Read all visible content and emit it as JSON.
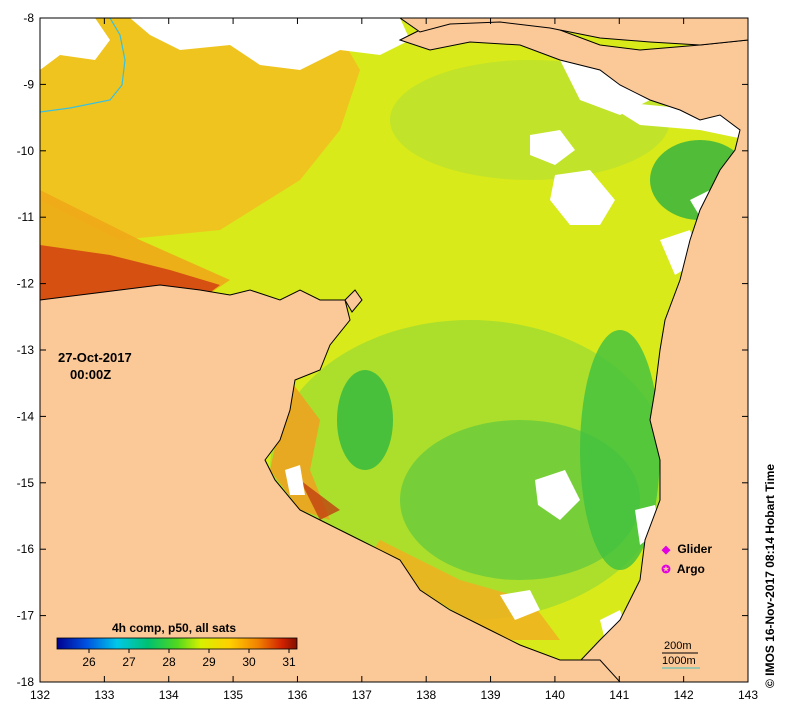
{
  "map": {
    "x_ticks": [
      "132",
      "133",
      "134",
      "135",
      "136",
      "137",
      "138",
      "139",
      "140",
      "141",
      "142",
      "143"
    ],
    "y_ticks": [
      "-8",
      "-9",
      "-10",
      "-11",
      "-12",
      "-13",
      "-14",
      "-15",
      "-16",
      "-17",
      "-18"
    ],
    "lon_range": [
      132,
      143
    ],
    "lat_range": [
      -18,
      -8
    ],
    "colors": {
      "land": "#fbc898",
      "no_data": "#ffffff",
      "coastline": "#000000",
      "river": "#38c0e0"
    }
  },
  "overlay": {
    "date": "27-Oct-2017",
    "time": "00:00Z"
  },
  "colorbar": {
    "title": "4h comp, p50, all sats",
    "ticks": [
      "26",
      "27",
      "28",
      "29",
      "30",
      "31"
    ],
    "range": [
      25.2,
      31.2
    ],
    "colors": [
      "#000090",
      "#0050e0",
      "#00c8e8",
      "#00c070",
      "#50d820",
      "#d8f000",
      "#ffd000",
      "#f08000",
      "#d02000",
      "#801000"
    ]
  },
  "legend": {
    "glider": "Glider",
    "argo": "Argo",
    "glider_icon": "diamond-icon",
    "argo_icon": "circle-icon",
    "marker_color": "#e000e0"
  },
  "depth_contours": {
    "shallow": "200m",
    "deep": "1000m"
  },
  "credit": "© IMOS 16-Nov-2017 08:14 Hobart Time"
}
